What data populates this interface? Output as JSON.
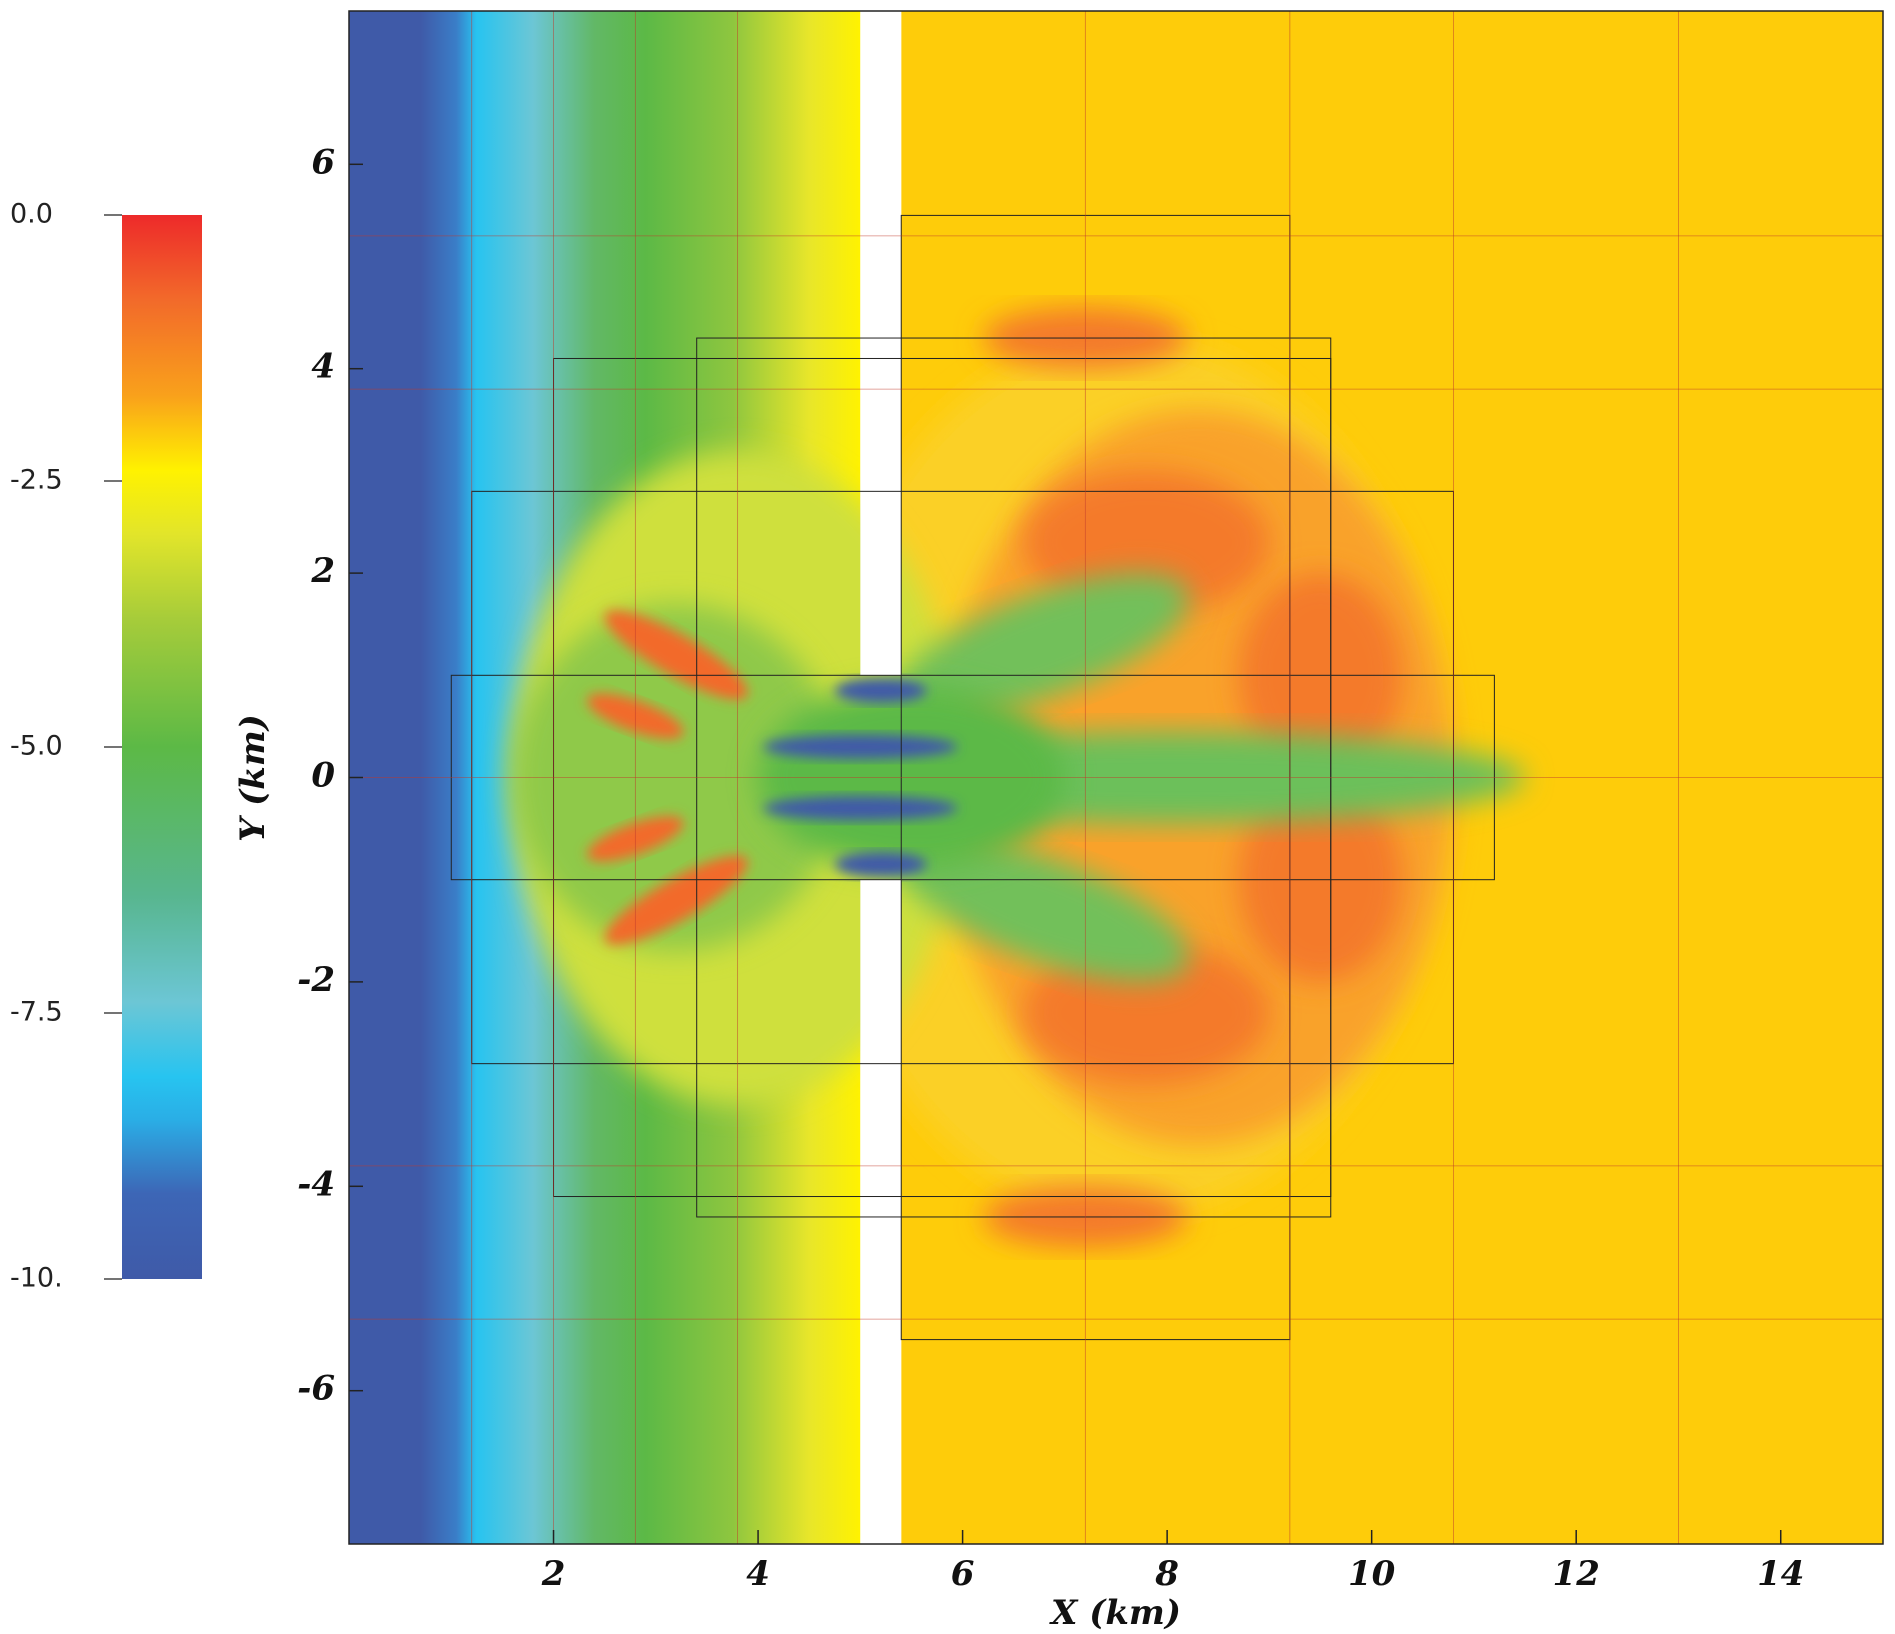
{
  "chart_data": {
    "type": "heatmap",
    "xlabel": "X (km)",
    "ylabel": "Y (km)",
    "xlim": [
      0,
      15
    ],
    "ylim": [
      -7.5,
      7.5
    ],
    "xticks": [
      2,
      4,
      6,
      8,
      10,
      12,
      14
    ],
    "yticks": [
      -6,
      -4,
      -2,
      0,
      2,
      4,
      6
    ],
    "colorbar": {
      "lim": [
        -10,
        0
      ],
      "ticks": [
        {
          "value": 0,
          "label": "0.0"
        },
        {
          "value": -2.5,
          "label": "-2.5"
        },
        {
          "value": -5,
          "label": "-5.0"
        },
        {
          "value": -7.5,
          "label": "-7.5"
        },
        {
          "value": -10,
          "label": "-10."
        }
      ]
    }
  }
}
